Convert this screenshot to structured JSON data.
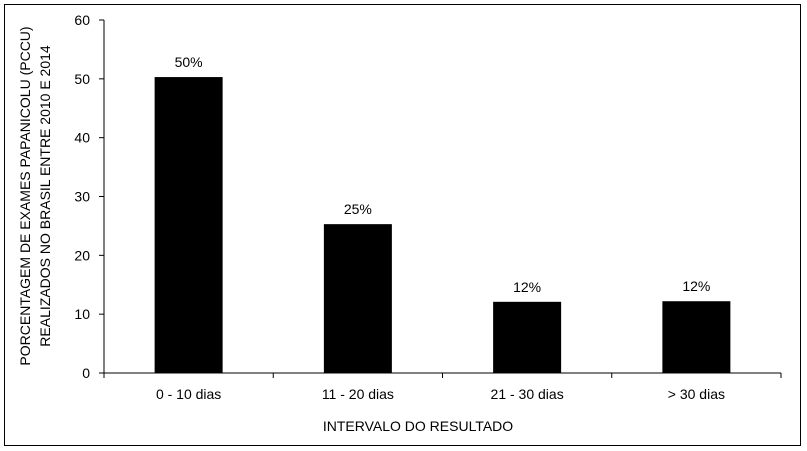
{
  "chart_data": {
    "type": "bar",
    "categories": [
      "0 - 10 dias",
      "11 - 20 dias",
      "21 - 30 dias",
      "> 30 dias"
    ],
    "values": [
      50.3,
      25.3,
      12.1,
      12.2
    ],
    "data_labels": [
      "50%",
      "25%",
      "12%",
      "12%"
    ],
    "title": "",
    "xlabel": "INTERVALO DO RESULTADO",
    "ylabel_lines": [
      "PORCENTAGEM DE EXAMES PAPANICOLU (PCCU)",
      "REALIZADOS NO BRASIL ENTRE 2010 E 2014"
    ],
    "ylim": [
      0,
      60
    ],
    "yticks": [
      "0",
      "10",
      "20",
      "30",
      "40",
      "50",
      "60"
    ],
    "grid": false,
    "legend": "none",
    "bar_color": "#000000"
  }
}
